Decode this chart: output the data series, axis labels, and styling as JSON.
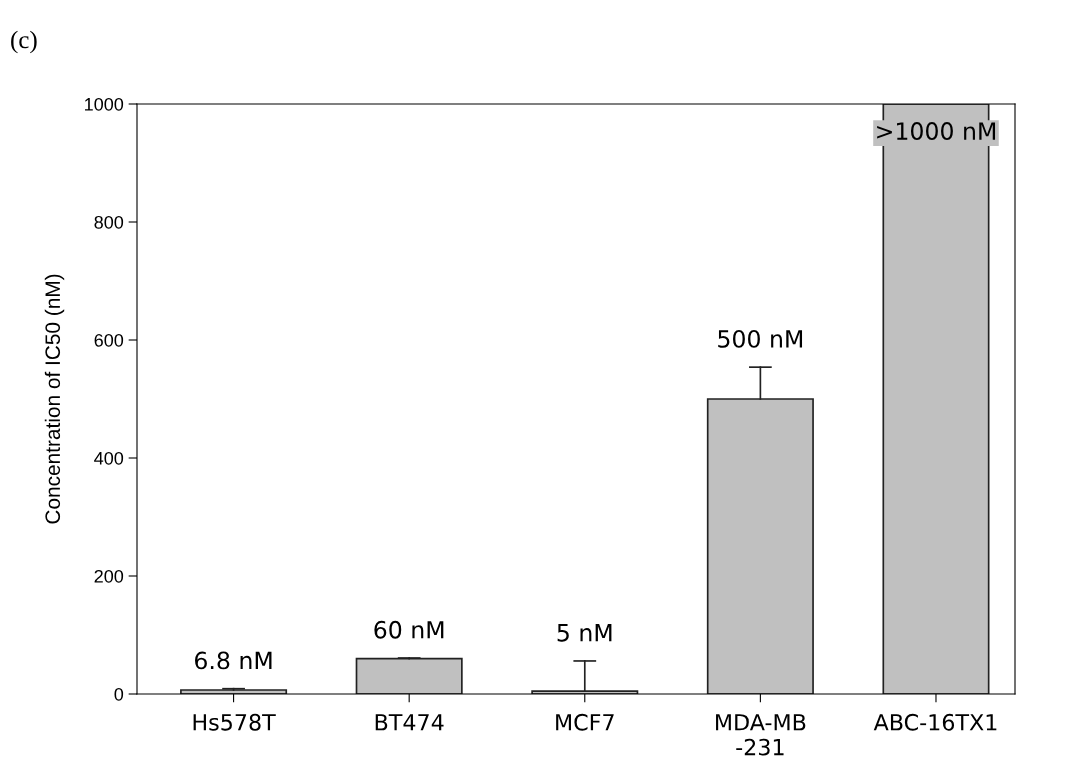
{
  "chart_data": {
    "type": "bar",
    "ylabel": "Concentration of IC50 (nM)",
    "categories": [
      "Hs578T",
      "BT474",
      "MCF7",
      "MDA-MB\n-231",
      "ABC-16TX1"
    ],
    "values": [
      6.8,
      60,
      5,
      500,
      1000
    ],
    "errors": [
      [
        6.8,
        9
      ],
      [
        60,
        61
      ],
      [
        5,
        56
      ],
      [
        500,
        554
      ],
      null
    ],
    "value_labels": [
      "6.8 nM",
      "60 nM",
      "5 nM",
      "500 nM",
      ">1000 nM"
    ],
    "color": "#c0c0c0",
    "ylim": [
      0,
      1000
    ],
    "yticks": [
      0,
      200,
      400,
      600,
      800,
      1000
    ],
    "grid": false,
    "annotations": [
      "(c)"
    ]
  }
}
